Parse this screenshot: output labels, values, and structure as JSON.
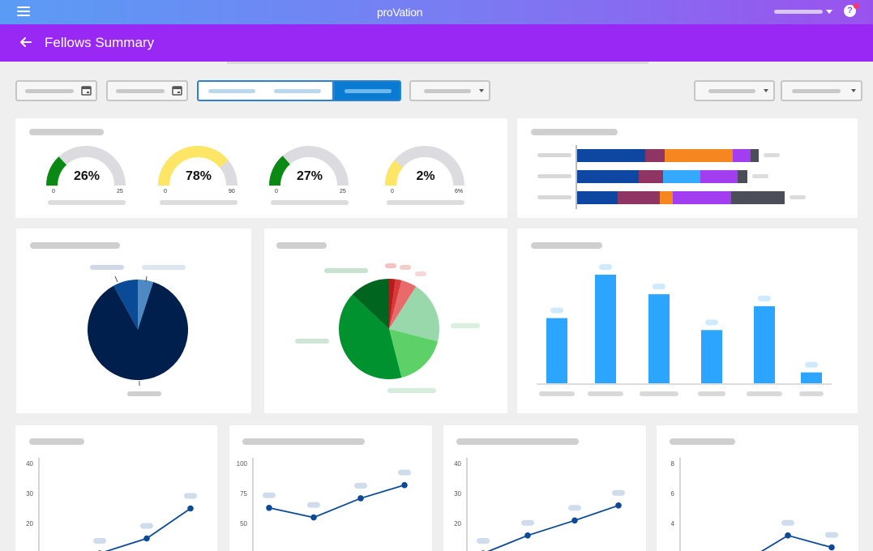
{
  "app": {
    "logo": "proVation"
  },
  "header": {
    "title": "Fellows Summary"
  },
  "colors": {
    "topbar_start": "#5a9cf5",
    "topbar_end": "#9a52ee",
    "titlebar": "#9a28f5",
    "accent": "#0a7bd3"
  },
  "icons": {
    "menu": "menu-icon",
    "back": "arrow-left-icon",
    "calendar": "calendar-icon",
    "help": "help-icon",
    "caret": "chevron-down-icon"
  },
  "gauges": [
    {
      "value_label": "26%",
      "value": 0.26,
      "min": "0",
      "max": "25",
      "color": "#0a8a14"
    },
    {
      "value_label": "78%",
      "value": 0.78,
      "min": "0",
      "max": "90",
      "color": "#fde566"
    },
    {
      "value_label": "27%",
      "value": 0.27,
      "min": "0",
      "max": "25",
      "color": "#0a8a14"
    },
    {
      "value_label": "2%",
      "value": 0.02,
      "min": "0",
      "max": "6%",
      "color": "#fde566"
    }
  ],
  "stacked_bars": {
    "colors": [
      "#0d47a1",
      "#8e3563",
      "#f6861f",
      "#33aaff",
      "#a33df0",
      "#4b4e58"
    ],
    "rows": [
      [
        84,
        24,
        84,
        0,
        22,
        10
      ],
      [
        76,
        30,
        0,
        46,
        46,
        12
      ],
      [
        50,
        52,
        16,
        0,
        72,
        66
      ]
    ]
  },
  "pie_blue": {
    "slices": [
      {
        "value": 87,
        "color": "#001f4d"
      },
      {
        "value": 8,
        "color": "#0b4a96"
      },
      {
        "value": 5,
        "color": "#4d89c2"
      }
    ]
  },
  "pie_green": {
    "slices": [
      {
        "value": 2,
        "color": "#b71c1c"
      },
      {
        "value": 2,
        "color": "#d83a3a"
      },
      {
        "value": 5,
        "color": "#e86a6a"
      },
      {
        "value": 20,
        "color": "#99d8aa"
      },
      {
        "value": 17,
        "color": "#5ed068"
      },
      {
        "value": 41,
        "color": "#00922e"
      },
      {
        "value": 13,
        "color": "#00661f"
      }
    ]
  },
  "bar_chart": {
    "values": [
      60,
      100,
      82,
      49,
      71,
      10
    ],
    "color": "#2ba5ff"
  },
  "line_charts": [
    {
      "yticks": [
        "40",
        "30",
        "20"
      ],
      "ymax": 40,
      "ymin": 10,
      "values": [
        null,
        10,
        15,
        25
      ]
    },
    {
      "yticks": [
        "100",
        "75",
        "50"
      ],
      "ymax": 100,
      "ymin": 25,
      "values": [
        63,
        55,
        71,
        82
      ]
    },
    {
      "yticks": [
        "40",
        "30",
        "20"
      ],
      "ymax": 40,
      "ymin": 10,
      "values": [
        10,
        16,
        21,
        26
      ]
    },
    {
      "yticks": [
        "8",
        "6",
        "4"
      ],
      "ymax": 8,
      "ymin": 2,
      "values": [
        null,
        null,
        3.2,
        2.4
      ]
    }
  ]
}
